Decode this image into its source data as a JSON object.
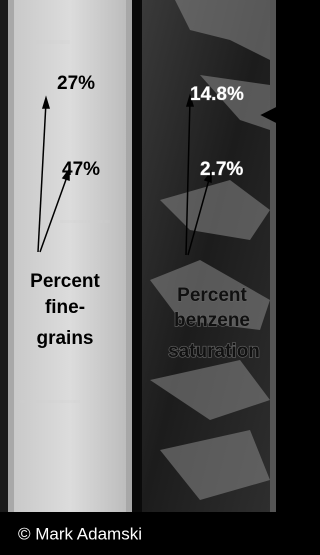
{
  "left_core": {
    "values": [
      "27%",
      "47%"
    ],
    "caption": [
      "Percent",
      "fine-",
      "grains"
    ]
  },
  "right_core": {
    "values": [
      "14.8%",
      "2.7%"
    ],
    "caption": [
      "Percent",
      "benzene",
      "saturation"
    ]
  },
  "credit": "© Mark Adamski"
}
